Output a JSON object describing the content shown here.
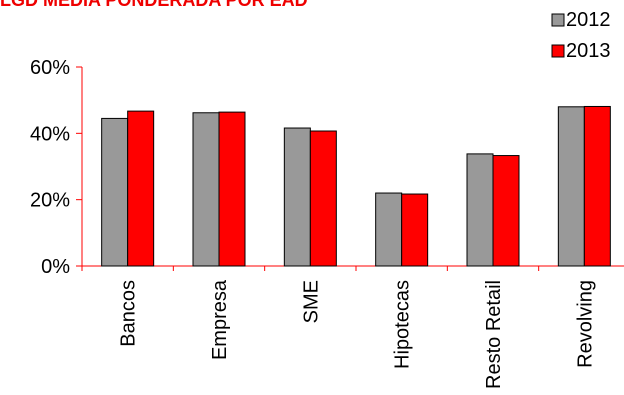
{
  "chart_data": {
    "type": "bar",
    "title": "LGD MEDIA PONDERADA POR EAD",
    "categories": [
      "Bancos",
      "Empresa",
      "SME",
      "Hipotecas",
      "Resto Retail",
      "Revolving"
    ],
    "series": [
      {
        "name": "2012",
        "values": [
          44.5,
          46.2,
          41.6,
          22.0,
          33.8,
          48.0
        ],
        "color": "#999999"
      },
      {
        "name": "2013",
        "values": [
          46.7,
          46.4,
          40.7,
          21.7,
          33.3,
          48.1
        ],
        "color": "#ff0000"
      }
    ],
    "yticks": [
      "0%",
      "20%",
      "40%",
      "60%"
    ],
    "ytick_values": [
      0,
      20,
      40,
      60
    ],
    "ylim": [
      0,
      60
    ],
    "legend_position": "top-right",
    "axis_color": "#ff0000"
  }
}
